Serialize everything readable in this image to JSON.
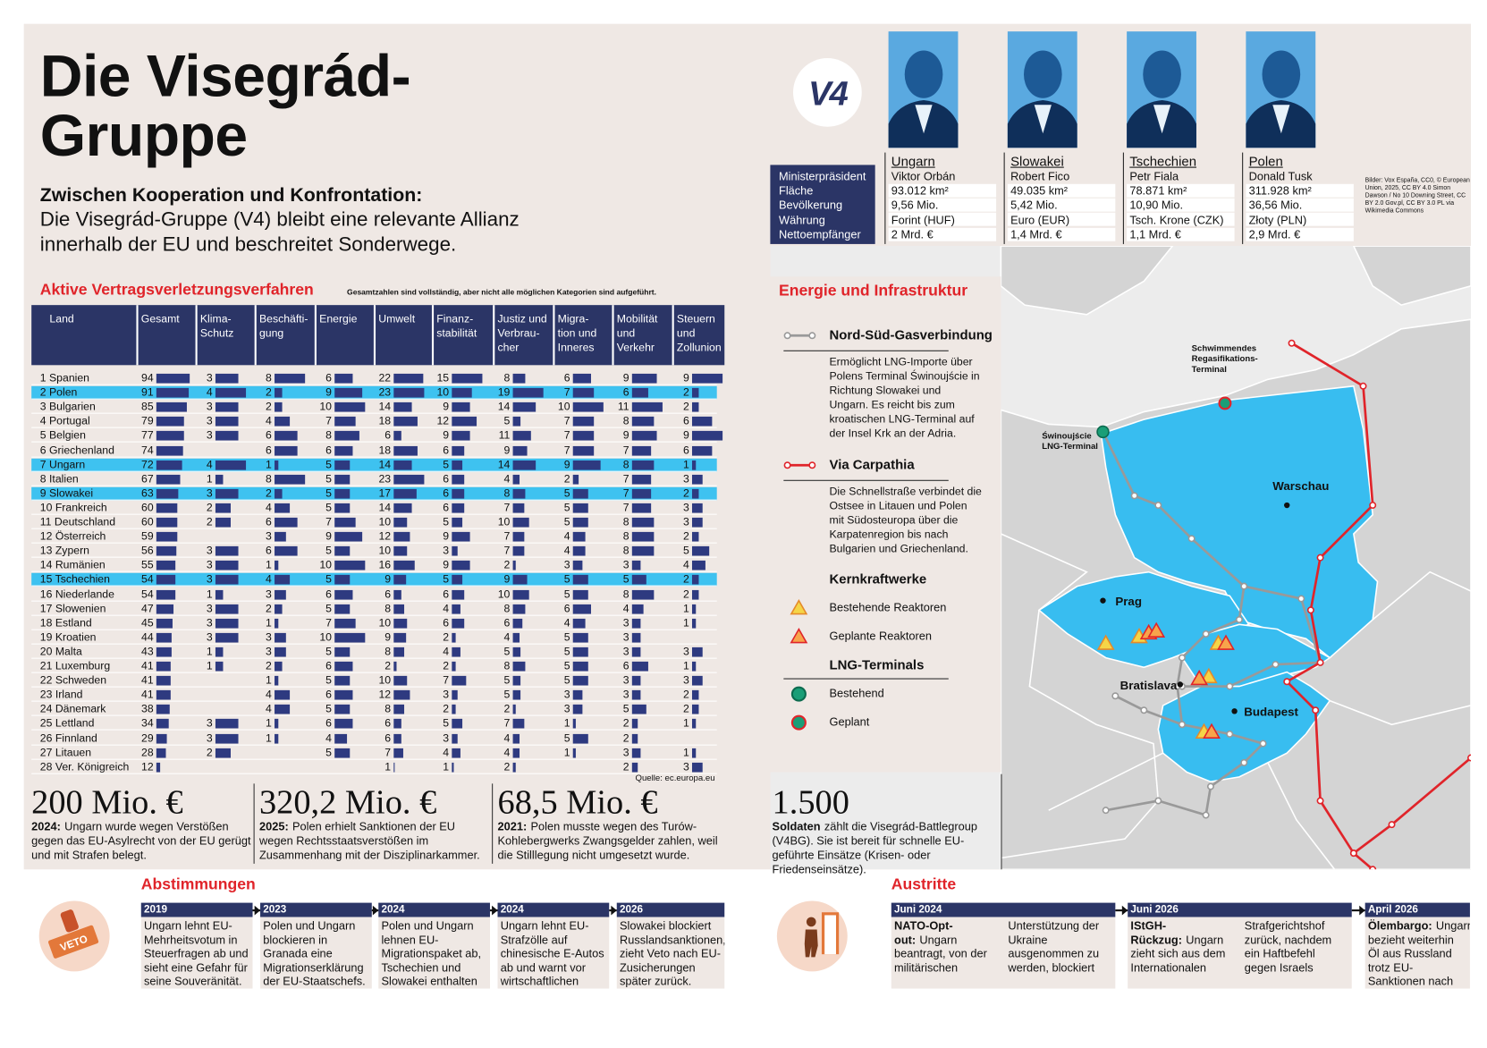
{
  "header": {
    "title": [
      "Die Visegrád-",
      "Gruppe"
    ],
    "lead_bold": "Zwischen Kooperation und Konfrontation:",
    "lead": "Die Visegrád-Gruppe (V4) bleibt eine relevante Allianz innerhalb der EU und beschreitet Sonderwege."
  },
  "logo": "V4",
  "leaders": {
    "row_labels": [
      "Ministerpräsident",
      "Fläche",
      "Bevölkerung",
      "Währung",
      "Nettoempfänger"
    ],
    "countries": [
      {
        "name": "Ungarn",
        "values": [
          "Viktor Orbán",
          "93.012 km²",
          "9,56 Mio.",
          "Forint (HUF)",
          "2 Mrd. €"
        ]
      },
      {
        "name": "Slowakei",
        "values": [
          "Robert Fico",
          "49.035 km²",
          "5,42 Mio.",
          "Euro (EUR)",
          "1,4 Mrd. €"
        ]
      },
      {
        "name": "Tschechien",
        "values": [
          "Petr Fiala",
          "78.871 km²",
          "10,90 Mio.",
          "Tsch. Krone (CZK)",
          "1,1 Mrd. €"
        ]
      },
      {
        "name": "Polen",
        "values": [
          "Donald Tusk",
          "311.928 km²",
          "36,56 Mio.",
          "Złoty (PLN)",
          "2,9 Mrd. €"
        ]
      }
    ],
    "credits": "Bilder: Vox España, CC0, © European Union, 2025, CC BY 4.0 Simon Dawson / No 10 Downing Street, CC BY 2.0 Gov.pl, CC BY 3.0 PL via Wikimedia Commons"
  },
  "infringements": {
    "title": "Aktive Vertragsverletzungsverfahren",
    "note": "Gesamtzahlen sind vollständig, aber nicht alle möglichen Kategorien sind aufgeführt.",
    "columns": [
      "Land",
      "Gesamt",
      "Klima-\nSchutz",
      "Beschäfti-\ngung",
      "Energie",
      "Umwelt",
      "Finanz-\nstabilität",
      "Justiz und\nVerbrau-\ncher",
      "Migra-\ntion und\nInneres",
      "Mobilität\nund\nVerkehr",
      "Steuern\nund\nZollunion"
    ],
    "bar_color": "#2e3a80",
    "highlight_color": "#3ec2f0",
    "rows": [
      {
        "land": "1 Spanien",
        "values": [
          94,
          3,
          8,
          6,
          22,
          15,
          8,
          6,
          9,
          9
        ],
        "highlighted": false
      },
      {
        "land": "2 Polen",
        "values": [
          91,
          4,
          2,
          9,
          23,
          10,
          19,
          7,
          6,
          2
        ],
        "highlighted": true
      },
      {
        "land": "3 Bulgarien",
        "values": [
          85,
          3,
          2,
          10,
          14,
          9,
          14,
          10,
          11,
          2
        ],
        "highlighted": false
      },
      {
        "land": "4 Portugal",
        "values": [
          79,
          3,
          4,
          7,
          18,
          12,
          5,
          7,
          8,
          6
        ],
        "highlighted": false
      },
      {
        "land": "5 Belgien",
        "values": [
          77,
          3,
          6,
          8,
          6,
          9,
          11,
          7,
          9,
          9
        ],
        "highlighted": false
      },
      {
        "land": "6 Griechenland",
        "values": [
          74,
          null,
          6,
          6,
          18,
          6,
          9,
          7,
          7,
          6
        ],
        "highlighted": false
      },
      {
        "land": "7 Ungarn",
        "values": [
          72,
          4,
          1,
          5,
          14,
          5,
          14,
          9,
          8,
          1
        ],
        "highlighted": true
      },
      {
        "land": "8 Italien",
        "values": [
          67,
          1,
          8,
          5,
          23,
          6,
          4,
          2,
          7,
          3
        ],
        "highlighted": false
      },
      {
        "land": "9 Slowakei",
        "values": [
          63,
          3,
          2,
          5,
          17,
          6,
          8,
          5,
          7,
          2
        ],
        "highlighted": true
      },
      {
        "land": "10 Frankreich",
        "values": [
          60,
          2,
          4,
          5,
          14,
          6,
          7,
          5,
          7,
          3
        ],
        "highlighted": false
      },
      {
        "land": "11 Deutschland",
        "values": [
          60,
          2,
          6,
          7,
          10,
          5,
          10,
          5,
          8,
          3
        ],
        "highlighted": false
      },
      {
        "land": "12 Österreich",
        "values": [
          59,
          null,
          3,
          9,
          12,
          9,
          7,
          4,
          8,
          2
        ],
        "highlighted": false
      },
      {
        "land": "13 Zypern",
        "values": [
          56,
          3,
          6,
          5,
          10,
          3,
          7,
          4,
          8,
          5
        ],
        "highlighted": false
      },
      {
        "land": "14 Rumänien",
        "values": [
          55,
          3,
          1,
          10,
          16,
          9,
          2,
          3,
          3,
          4
        ],
        "highlighted": false
      },
      {
        "land": "15 Tschechien",
        "values": [
          54,
          3,
          4,
          5,
          9,
          5,
          9,
          5,
          5,
          2
        ],
        "highlighted": true
      },
      {
        "land": "16 Niederlande",
        "values": [
          54,
          1,
          3,
          6,
          6,
          6,
          10,
          5,
          8,
          2
        ],
        "highlighted": false
      },
      {
        "land": "17 Slowenien",
        "values": [
          47,
          3,
          2,
          5,
          8,
          4,
          8,
          6,
          4,
          1
        ],
        "highlighted": false
      },
      {
        "land": "18 Estland",
        "values": [
          45,
          3,
          1,
          7,
          10,
          6,
          6,
          4,
          3,
          1
        ],
        "highlighted": false
      },
      {
        "land": "19 Kroatien",
        "values": [
          44,
          3,
          3,
          10,
          9,
          2,
          4,
          5,
          3,
          null
        ],
        "highlighted": false
      },
      {
        "land": "20 Malta",
        "values": [
          43,
          1,
          3,
          5,
          8,
          4,
          5,
          5,
          3,
          3
        ],
        "highlighted": false
      },
      {
        "land": "21 Luxemburg",
        "values": [
          41,
          1,
          2,
          6,
          2,
          2,
          8,
          5,
          6,
          1
        ],
        "highlighted": false
      },
      {
        "land": "22 Schweden",
        "values": [
          41,
          null,
          1,
          5,
          10,
          7,
          5,
          5,
          3,
          3
        ],
        "highlighted": false
      },
      {
        "land": "23 Irland",
        "values": [
          41,
          null,
          4,
          6,
          12,
          3,
          5,
          3,
          3,
          2
        ],
        "highlighted": false
      },
      {
        "land": "24 Dänemark",
        "values": [
          38,
          null,
          4,
          5,
          8,
          2,
          2,
          3,
          5,
          2
        ],
        "highlighted": false
      },
      {
        "land": "25 Lettland",
        "values": [
          34,
          3,
          1,
          6,
          6,
          5,
          7,
          1,
          2,
          1
        ],
        "highlighted": false
      },
      {
        "land": "26 Finnland",
        "values": [
          29,
          3,
          1,
          4,
          6,
          3,
          4,
          5,
          2,
          null
        ],
        "highlighted": false
      },
      {
        "land": "27 Litauen",
        "values": [
          28,
          2,
          null,
          5,
          7,
          4,
          4,
          1,
          3,
          1
        ],
        "highlighted": false
      },
      {
        "land": "28 Ver. Königreich",
        "values": [
          12,
          null,
          null,
          null,
          1,
          1,
          2,
          null,
          2,
          3
        ],
        "highlighted": false
      }
    ],
    "source": "Quelle: ec.europa.eu"
  },
  "figures": [
    {
      "number": "200 Mio. €",
      "bold": "2024:",
      "text": "Ungarn wurde wegen Verstößen gegen das EU-Asylrecht von der EU gerügt und mit Strafen belegt."
    },
    {
      "number": "320,2 Mio. €",
      "bold": "2025:",
      "text": "Polen erhielt Sanktionen der EU wegen Rechtsstaatsverstößen im Zusammenhang mit der Disziplinarkammer."
    },
    {
      "number": "68,5 Mio. €",
      "bold": "2021:",
      "text": "Polen musste wegen des Turów-Kohlebergwerks Zwangsgelder zahlen, weil die Stilllegung nicht umgesetzt wurde."
    },
    {
      "number": "1.500",
      "bold": "Soldaten",
      "text": "zählt die Visegrád-Battlegroup (V4BG). Sie ist bereit für schnelle EU-geführte Einsätze (Krisen- oder Friedenseinsätze)."
    }
  ],
  "energy": {
    "title": "Energie und Infrastruktur",
    "routes": [
      {
        "label": "Nord-Süd-Gasverbindung",
        "text": "Ermöglicht LNG-Importe über Polens Terminal Świnoujście in Richtung Slowakei und Ungarn. Es reicht bis zum kroatischen LNG-Terminal auf der Insel Krk an der Adria.",
        "color": "#999999"
      },
      {
        "label": "Via Carpathia",
        "text": "Die Schnellstraße verbindet die Ostsee in Litauen und Polen mit Südosteuropa über die Karpatenregion bis nach Bulgarien und Griechenland.",
        "color": "#e0242a"
      }
    ],
    "groups": [
      {
        "label": "Kernkraftwerke",
        "items": [
          "Bestehende Reaktoren",
          "Geplante Reaktoren"
        ]
      },
      {
        "label": "LNG-Terminals",
        "items": [
          "Bestehend",
          "Geplant"
        ]
      }
    ],
    "map_color": "#38bdf0",
    "map_labels": [
      "Schwimmendes Regasifikations-Terminal",
      "Świnoujście LNG-Terminal",
      "Warschau",
      "Prag",
      "Bratislava",
      "Budapest"
    ]
  },
  "votes": {
    "title": "Abstimmungen",
    "icon_text": "VETO",
    "items": [
      {
        "date": "2019",
        "text": "Ungarn lehnt EU-Mehrheitsvotum in Steuerfragen ab und sieht eine Gefahr für seine Souveränität."
      },
      {
        "date": "2023",
        "text": "Polen und Ungarn blockieren in Granada eine Migrationserklärung der EU-Staatschefs."
      },
      {
        "date": "2024",
        "text": "Polen und Ungarn lehnen EU-Migrationspaket ab, Tschechien und Slowakei enthalten sich."
      },
      {
        "date": "2024",
        "text": "Ungarn lehnt EU-Strafzölle auf chinesische E-Autos ab und warnt vor wirtschaftlichen Risiken."
      },
      {
        "date": "2026",
        "text": "Slowakei blockiert Russlandsanktionen, zieht Veto nach EU-Zusicherungen später zurück."
      }
    ]
  },
  "exits": {
    "title": "Austritte",
    "items": [
      {
        "date": "Juni 2024",
        "bold": "NATO-Opt-out:",
        "text": "Ungarn beantragt, von der militärischen Unterstützung der Ukraine ausgenommen zu werden, blockiert aber wichtige NATO-Beschlüsse nicht. Stoltenberg besucht Budapest."
      },
      {
        "date": "Juni 2026",
        "bold": "IStGH-Rückzug:",
        "text": "Ungarn zieht sich aus dem Internationalen Strafgerichtshof zurück, nachdem ein Haftbefehl gegen Israels Premier Benjamin Netanjahu erlassen wurde."
      },
      {
        "date": "April 2026",
        "bold": "Ölembargo:",
        "text": "Ungarn bezieht weiterhin Öl aus Russland trotz EU-Sanktionen nach der Ukraine-Invasion."
      }
    ]
  }
}
